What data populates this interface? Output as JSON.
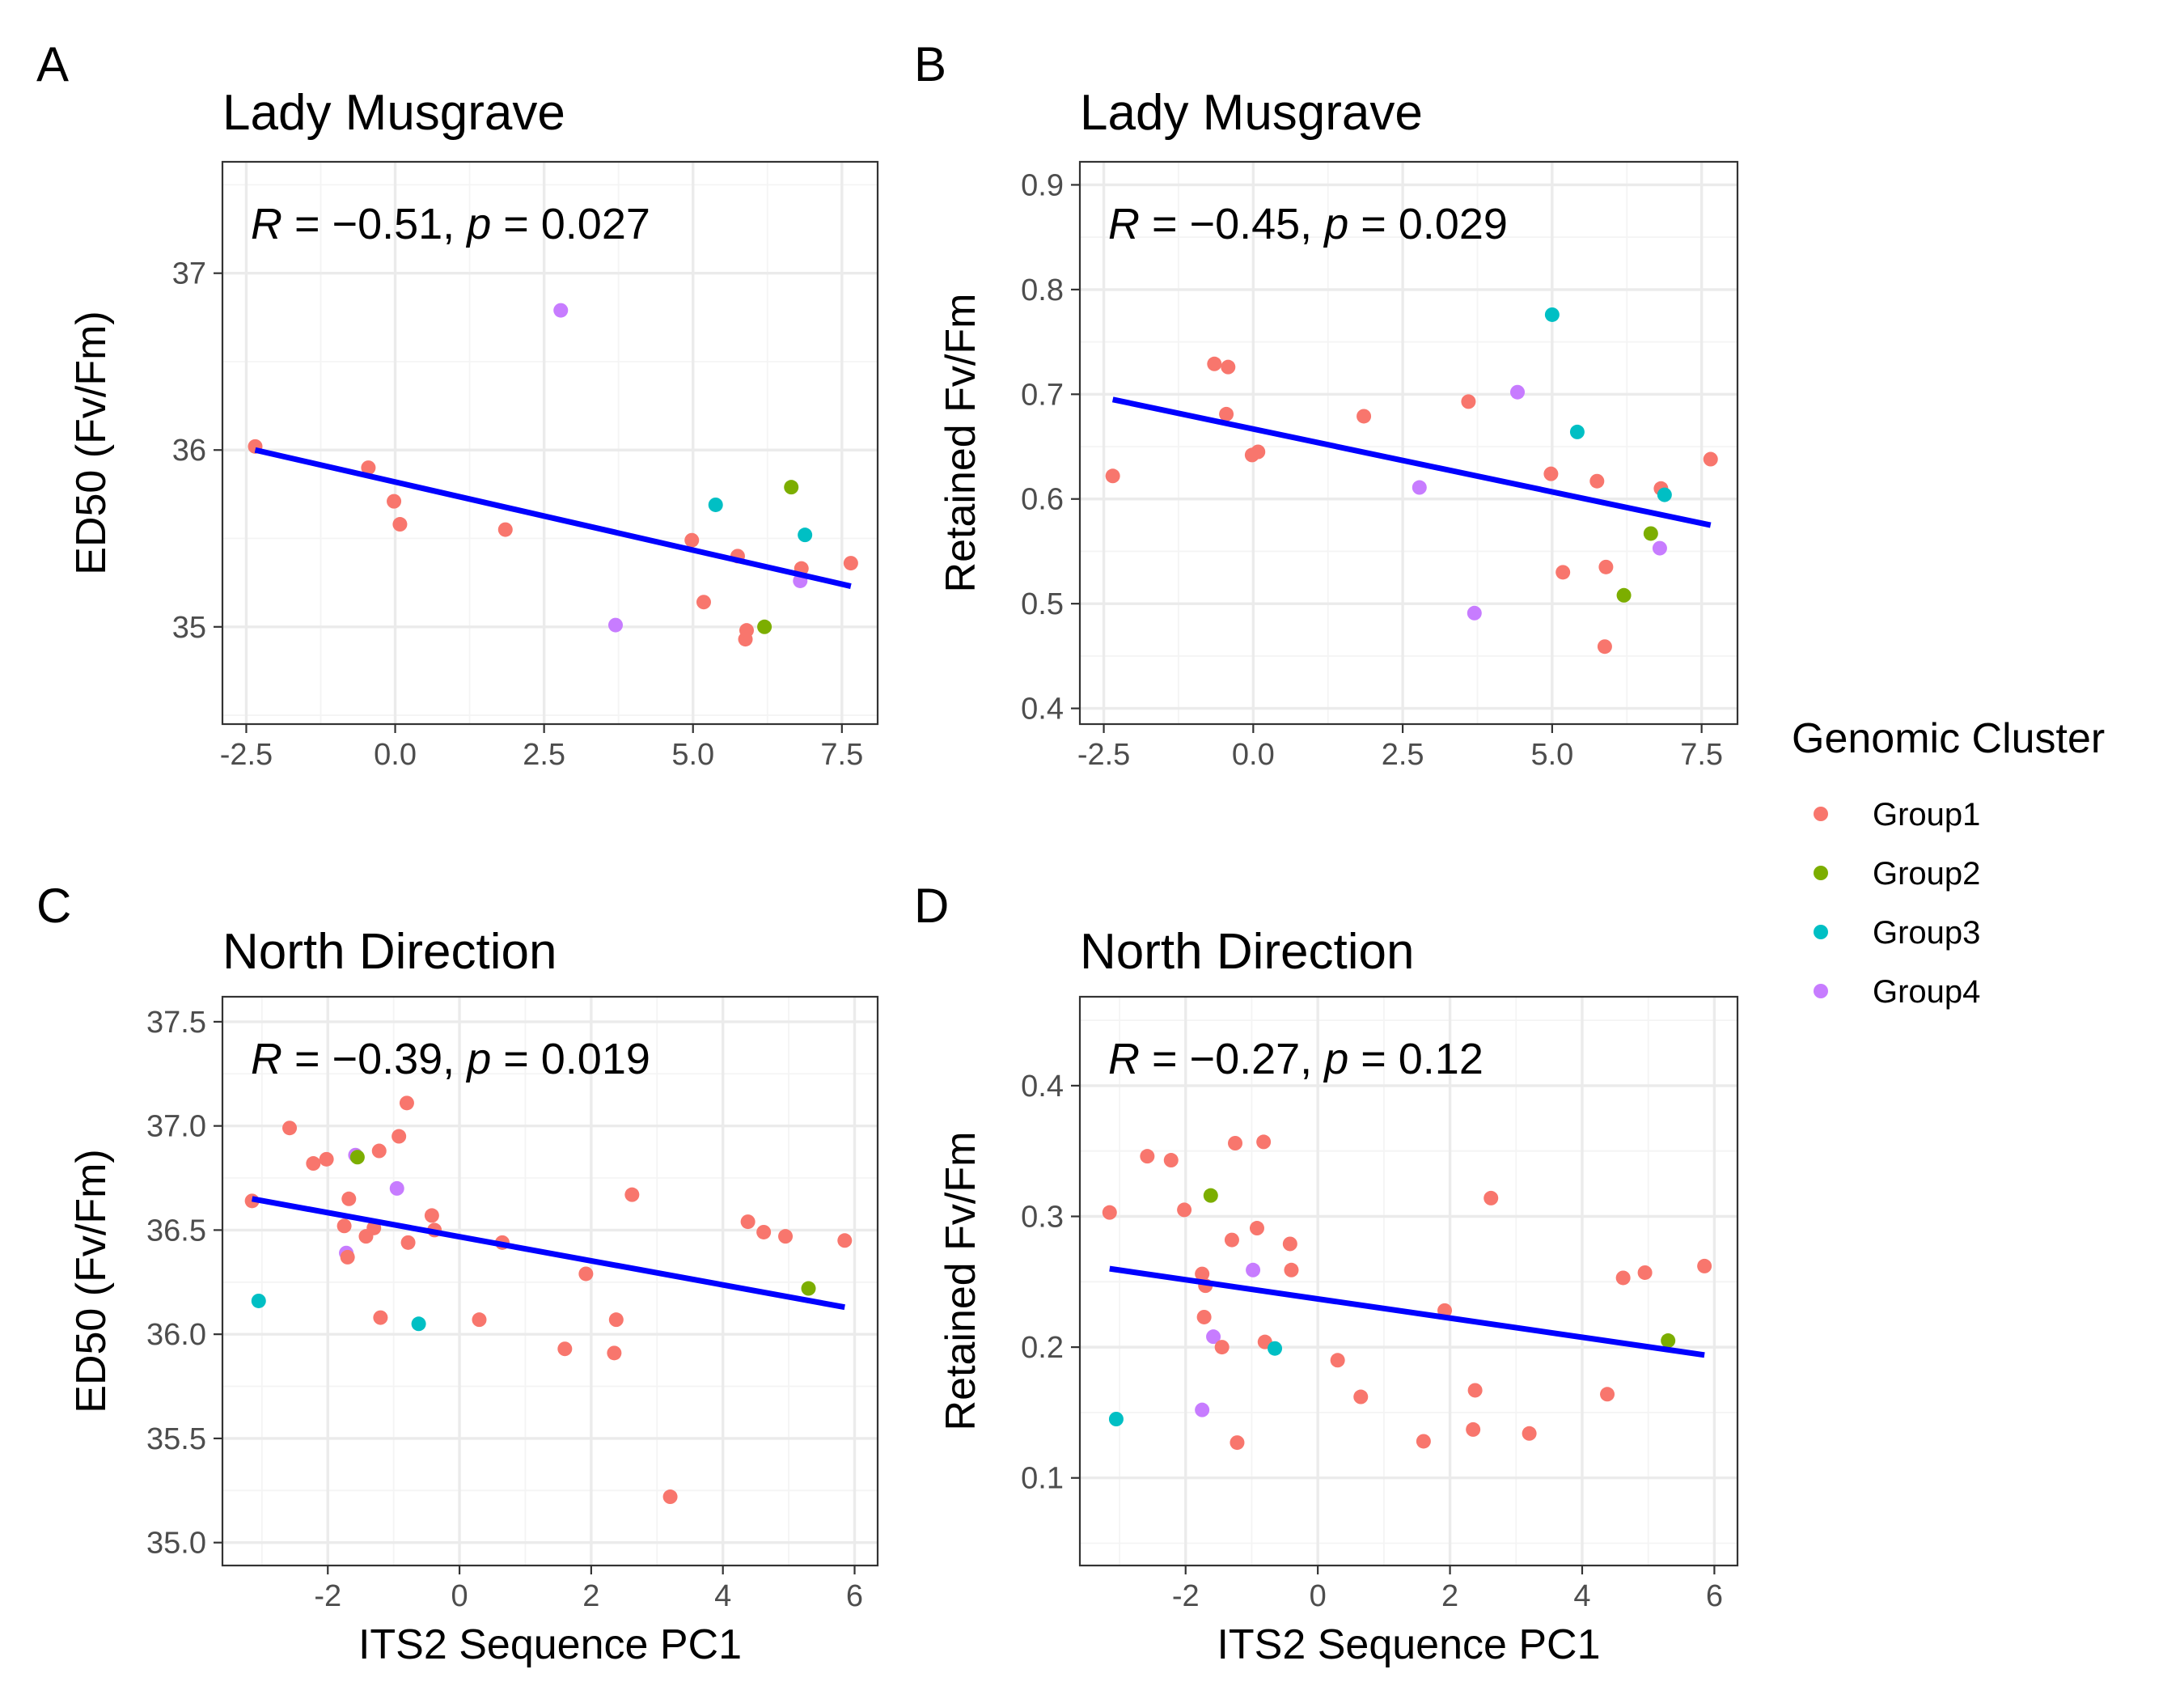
{
  "legend": {
    "title": "Genomic Cluster",
    "position": "right",
    "items": [
      {
        "label": "Group1",
        "color": "#F8766D"
      },
      {
        "label": "Group2",
        "color": "#7CAE00"
      },
      {
        "label": "Group3",
        "color": "#00BFC4"
      },
      {
        "label": "Group4",
        "color": "#C77CFF"
      }
    ]
  },
  "chart_data": [
    {
      "panel": "A",
      "type": "scatter",
      "title": "Lady Musgrave",
      "xlabel": "",
      "ylabel": "ED50 (Fv/Fm)",
      "xlim": [
        -2.9,
        8.1
      ],
      "ylim": [
        34.45,
        37.63
      ],
      "xticks": [
        -2.5,
        0.0,
        2.5,
        5.0,
        7.5
      ],
      "xtick_labels": [
        "-2.5",
        "0.0",
        "2.5",
        "5.0",
        "7.5"
      ],
      "yticks": [
        35,
        36,
        37
      ],
      "ytick_labels": [
        "35",
        "36",
        "37"
      ],
      "grid": true,
      "annotation": {
        "r_value": "−0.51",
        "p_value": "0.027"
      },
      "fit_line": {
        "x": [
          -2.35,
          7.65
        ],
        "y": [
          36.0,
          35.23
        ],
        "color": "#0000FF"
      },
      "points": [
        {
          "x": -2.35,
          "y": 36.02,
          "group": "Group1"
        },
        {
          "x": -0.45,
          "y": 35.9,
          "group": "Group1"
        },
        {
          "x": -0.02,
          "y": 35.71,
          "group": "Group1"
        },
        {
          "x": 0.08,
          "y": 35.58,
          "group": "Group1"
        },
        {
          "x": 1.85,
          "y": 35.55,
          "group": "Group1"
        },
        {
          "x": 2.78,
          "y": 36.79,
          "group": "Group4"
        },
        {
          "x": 3.7,
          "y": 35.01,
          "group": "Group4"
        },
        {
          "x": 4.98,
          "y": 35.49,
          "group": "Group1"
        },
        {
          "x": 5.18,
          "y": 35.14,
          "group": "Group1"
        },
        {
          "x": 5.38,
          "y": 35.69,
          "group": "Group3"
        },
        {
          "x": 5.75,
          "y": 35.4,
          "group": "Group1"
        },
        {
          "x": 5.88,
          "y": 34.93,
          "group": "Group1"
        },
        {
          "x": 5.9,
          "y": 34.98,
          "group": "Group1"
        },
        {
          "x": 6.2,
          "y": 35.0,
          "group": "Group2"
        },
        {
          "x": 6.65,
          "y": 35.79,
          "group": "Group2"
        },
        {
          "x": 6.8,
          "y": 35.26,
          "group": "Group4"
        },
        {
          "x": 6.82,
          "y": 35.33,
          "group": "Group1"
        },
        {
          "x": 6.88,
          "y": 35.52,
          "group": "Group3"
        },
        {
          "x": 7.65,
          "y": 35.36,
          "group": "Group1"
        }
      ]
    },
    {
      "panel": "B",
      "type": "scatter",
      "title": "Lady Musgrave",
      "xlabel": "",
      "ylabel": "Retained Fv/Fm",
      "xlim": [
        -2.9,
        8.1
      ],
      "ylim": [
        0.385,
        0.922
      ],
      "xticks": [
        -2.5,
        0.0,
        2.5,
        5.0,
        7.5
      ],
      "xtick_labels": [
        "-2.5",
        "0.0",
        "2.5",
        "5.0",
        "7.5"
      ],
      "yticks": [
        0.4,
        0.5,
        0.6,
        0.7,
        0.8,
        0.9
      ],
      "ytick_labels": [
        "0.4",
        "0.5",
        "0.6",
        "0.7",
        "0.8",
        "0.9"
      ],
      "grid": true,
      "annotation": {
        "r_value": "−0.45",
        "p_value": "0.029"
      },
      "fit_line": {
        "x": [
          -2.35,
          7.65
        ],
        "y": [
          0.695,
          0.575
        ],
        "color": "#0000FF"
      },
      "points": [
        {
          "x": -2.35,
          "y": 0.622,
          "group": "Group1"
        },
        {
          "x": -0.65,
          "y": 0.729,
          "group": "Group1"
        },
        {
          "x": -0.42,
          "y": 0.726,
          "group": "Group1"
        },
        {
          "x": -0.45,
          "y": 0.681,
          "group": "Group1"
        },
        {
          "x": -0.02,
          "y": 0.642,
          "group": "Group1"
        },
        {
          "x": 0.08,
          "y": 0.645,
          "group": "Group1"
        },
        {
          "x": 1.85,
          "y": 0.679,
          "group": "Group1"
        },
        {
          "x": 2.78,
          "y": 0.611,
          "group": "Group4"
        },
        {
          "x": 3.6,
          "y": 0.693,
          "group": "Group1"
        },
        {
          "x": 3.7,
          "y": 0.491,
          "group": "Group4"
        },
        {
          "x": 4.42,
          "y": 0.702,
          "group": "Group4"
        },
        {
          "x": 4.98,
          "y": 0.624,
          "group": "Group1"
        },
        {
          "x": 5.0,
          "y": 0.776,
          "group": "Group3"
        },
        {
          "x": 5.18,
          "y": 0.53,
          "group": "Group1"
        },
        {
          "x": 5.42,
          "y": 0.664,
          "group": "Group3"
        },
        {
          "x": 5.75,
          "y": 0.617,
          "group": "Group1"
        },
        {
          "x": 5.88,
          "y": 0.459,
          "group": "Group1"
        },
        {
          "x": 5.9,
          "y": 0.535,
          "group": "Group1"
        },
        {
          "x": 6.2,
          "y": 0.508,
          "group": "Group2"
        },
        {
          "x": 6.65,
          "y": 0.567,
          "group": "Group2"
        },
        {
          "x": 6.8,
          "y": 0.553,
          "group": "Group4"
        },
        {
          "x": 6.82,
          "y": 0.61,
          "group": "Group1"
        },
        {
          "x": 6.88,
          "y": 0.604,
          "group": "Group3"
        },
        {
          "x": 7.65,
          "y": 0.638,
          "group": "Group1"
        }
      ]
    },
    {
      "panel": "C",
      "type": "scatter",
      "title": "North Direction",
      "xlabel": "ITS2 Sequence PC1",
      "ylabel": "ED50 (Fv/Fm)",
      "xlim": [
        -3.6,
        6.35
      ],
      "ylim": [
        34.89,
        37.62
      ],
      "xticks": [
        -2,
        0,
        2,
        4,
        6
      ],
      "xtick_labels": [
        "-2",
        "0",
        "2",
        "4",
        "6"
      ],
      "yticks": [
        35.0,
        35.5,
        36.0,
        36.5,
        37.0,
        37.5
      ],
      "ytick_labels": [
        "35.0",
        "35.5",
        "36.0",
        "36.5",
        "37.0",
        "37.5"
      ],
      "grid": true,
      "annotation": {
        "r_value": "−0.39",
        "p_value": "0.019"
      },
      "fit_line": {
        "x": [
          -3.15,
          5.85
        ],
        "y": [
          36.65,
          36.13
        ],
        "color": "#0000FF"
      },
      "points": [
        {
          "x": -3.15,
          "y": 36.64,
          "group": "Group1"
        },
        {
          "x": -3.05,
          "y": 36.16,
          "group": "Group3"
        },
        {
          "x": -2.58,
          "y": 36.99,
          "group": "Group1"
        },
        {
          "x": -2.22,
          "y": 36.82,
          "group": "Group1"
        },
        {
          "x": -2.02,
          "y": 36.84,
          "group": "Group1"
        },
        {
          "x": -1.75,
          "y": 36.52,
          "group": "Group1"
        },
        {
          "x": -1.72,
          "y": 36.39,
          "group": "Group4"
        },
        {
          "x": -1.7,
          "y": 36.37,
          "group": "Group1"
        },
        {
          "x": -1.68,
          "y": 36.65,
          "group": "Group1"
        },
        {
          "x": -1.58,
          "y": 36.86,
          "group": "Group4"
        },
        {
          "x": -1.55,
          "y": 36.85,
          "group": "Group2"
        },
        {
          "x": -1.42,
          "y": 36.47,
          "group": "Group1"
        },
        {
          "x": -1.3,
          "y": 36.51,
          "group": "Group1"
        },
        {
          "x": -1.22,
          "y": 36.88,
          "group": "Group1"
        },
        {
          "x": -1.2,
          "y": 36.08,
          "group": "Group1"
        },
        {
          "x": -0.95,
          "y": 36.7,
          "group": "Group4"
        },
        {
          "x": -0.92,
          "y": 36.95,
          "group": "Group1"
        },
        {
          "x": -0.8,
          "y": 37.11,
          "group": "Group1"
        },
        {
          "x": -0.78,
          "y": 36.44,
          "group": "Group1"
        },
        {
          "x": -0.62,
          "y": 36.05,
          "group": "Group3"
        },
        {
          "x": -0.42,
          "y": 36.57,
          "group": "Group1"
        },
        {
          "x": -0.38,
          "y": 36.5,
          "group": "Group1"
        },
        {
          "x": 0.3,
          "y": 36.07,
          "group": "Group1"
        },
        {
          "x": 0.65,
          "y": 36.44,
          "group": "Group1"
        },
        {
          "x": 1.6,
          "y": 35.93,
          "group": "Group1"
        },
        {
          "x": 1.92,
          "y": 36.29,
          "group": "Group1"
        },
        {
          "x": 2.35,
          "y": 35.91,
          "group": "Group1"
        },
        {
          "x": 2.38,
          "y": 36.07,
          "group": "Group1"
        },
        {
          "x": 2.62,
          "y": 36.67,
          "group": "Group1"
        },
        {
          "x": 3.2,
          "y": 35.22,
          "group": "Group1"
        },
        {
          "x": 4.38,
          "y": 36.54,
          "group": "Group1"
        },
        {
          "x": 4.62,
          "y": 36.49,
          "group": "Group1"
        },
        {
          "x": 4.95,
          "y": 36.47,
          "group": "Group1"
        },
        {
          "x": 5.3,
          "y": 36.22,
          "group": "Group2"
        },
        {
          "x": 5.85,
          "y": 36.45,
          "group": "Group1"
        }
      ]
    },
    {
      "panel": "D",
      "type": "scatter",
      "title": "North Direction",
      "xlabel": "ITS2 Sequence PC1",
      "ylabel": "Retained Fv/Fm",
      "xlim": [
        -3.6,
        6.35
      ],
      "ylim": [
        0.033,
        0.468
      ],
      "xticks": [
        -2,
        0,
        2,
        4,
        6
      ],
      "xtick_labels": [
        "-2",
        "0",
        "2",
        "4",
        "6"
      ],
      "yticks": [
        0.1,
        0.2,
        0.3,
        0.4
      ],
      "ytick_labels": [
        "0.1",
        "0.2",
        "0.3",
        "0.4"
      ],
      "grid": true,
      "annotation": {
        "r_value": "−0.27",
        "p_value": "0.12"
      },
      "fit_line": {
        "x": [
          -3.15,
          5.85
        ],
        "y": [
          0.26,
          0.194
        ],
        "color": "#0000FF"
      },
      "points": [
        {
          "x": -3.15,
          "y": 0.303,
          "group": "Group1"
        },
        {
          "x": -3.05,
          "y": 0.145,
          "group": "Group3"
        },
        {
          "x": -2.58,
          "y": 0.346,
          "group": "Group1"
        },
        {
          "x": -2.22,
          "y": 0.343,
          "group": "Group1"
        },
        {
          "x": -2.02,
          "y": 0.305,
          "group": "Group1"
        },
        {
          "x": -1.75,
          "y": 0.256,
          "group": "Group1"
        },
        {
          "x": -1.72,
          "y": 0.223,
          "group": "Group1"
        },
        {
          "x": -1.7,
          "y": 0.247,
          "group": "Group1"
        },
        {
          "x": -1.75,
          "y": 0.152,
          "group": "Group4"
        },
        {
          "x": -1.58,
          "y": 0.208,
          "group": "Group4"
        },
        {
          "x": -1.62,
          "y": 0.316,
          "group": "Group2"
        },
        {
          "x": -1.45,
          "y": 0.2,
          "group": "Group1"
        },
        {
          "x": -1.3,
          "y": 0.282,
          "group": "Group1"
        },
        {
          "x": -1.25,
          "y": 0.356,
          "group": "Group1"
        },
        {
          "x": -1.22,
          "y": 0.127,
          "group": "Group1"
        },
        {
          "x": -0.98,
          "y": 0.259,
          "group": "Group4"
        },
        {
          "x": -0.92,
          "y": 0.291,
          "group": "Group1"
        },
        {
          "x": -0.82,
          "y": 0.357,
          "group": "Group1"
        },
        {
          "x": -0.8,
          "y": 0.204,
          "group": "Group1"
        },
        {
          "x": -0.65,
          "y": 0.199,
          "group": "Group3"
        },
        {
          "x": -0.42,
          "y": 0.279,
          "group": "Group1"
        },
        {
          "x": -0.4,
          "y": 0.259,
          "group": "Group1"
        },
        {
          "x": 0.3,
          "y": 0.19,
          "group": "Group1"
        },
        {
          "x": 0.65,
          "y": 0.162,
          "group": "Group1"
        },
        {
          "x": 1.6,
          "y": 0.128,
          "group": "Group1"
        },
        {
          "x": 1.92,
          "y": 0.228,
          "group": "Group1"
        },
        {
          "x": 2.35,
          "y": 0.137,
          "group": "Group1"
        },
        {
          "x": 2.38,
          "y": 0.167,
          "group": "Group1"
        },
        {
          "x": 2.62,
          "y": 0.314,
          "group": "Group1"
        },
        {
          "x": 3.2,
          "y": 0.134,
          "group": "Group1"
        },
        {
          "x": 4.38,
          "y": 0.164,
          "group": "Group1"
        },
        {
          "x": 4.62,
          "y": 0.253,
          "group": "Group1"
        },
        {
          "x": 4.95,
          "y": 0.257,
          "group": "Group1"
        },
        {
          "x": 5.3,
          "y": 0.205,
          "group": "Group2"
        },
        {
          "x": 5.85,
          "y": 0.262,
          "group": "Group1"
        }
      ]
    }
  ]
}
